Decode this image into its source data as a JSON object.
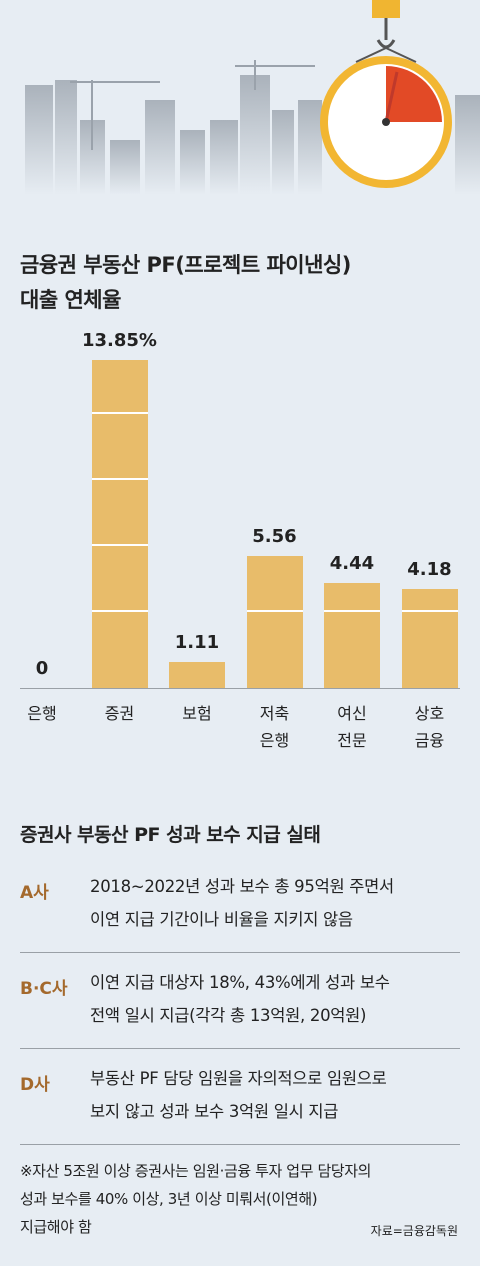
{
  "chart_data": {
    "type": "bar",
    "title": "금융권 부동산 PF(프로젝트 파이낸싱)\n대출 연체율",
    "categories": [
      "은행",
      "증권",
      "보험",
      "저축\n은행",
      "여신\n전문",
      "상호\n금융"
    ],
    "values": [
      0,
      13.85,
      1.11,
      5.56,
      4.44,
      4.18
    ],
    "value_labels": [
      "0",
      "13.85%",
      "1.11",
      "5.56",
      "4.44",
      "4.18"
    ],
    "color": "#e8bc6a"
  },
  "table": {
    "title": "증권사 부동산 PF 성과 보수 지급 실태",
    "rows": [
      [
        "A사",
        "2018~2022년 성과 보수 총 95억원 주면서\n이연 지급 기간이나 비율을 지키지 않음"
      ],
      [
        "B·C사",
        "이연 지급 대상자 18%, 43%에게 성과 보수\n전액 일시 지급(각각 총 13억원, 20억원)"
      ],
      [
        "D사",
        "부동산 PF 담당 임원을 자의적으로 임원으로\n보지 않고 성과 보수 3억원 일시 지급"
      ]
    ]
  },
  "footnote": "※자산 5조원 이상 증권사는 임원·금융 투자 업무 담당자의\n  성과 보수를 40% 이상, 3년 이상 미뤄서(이연해)\n  지급해야 함",
  "source": "자료=금융감독원"
}
